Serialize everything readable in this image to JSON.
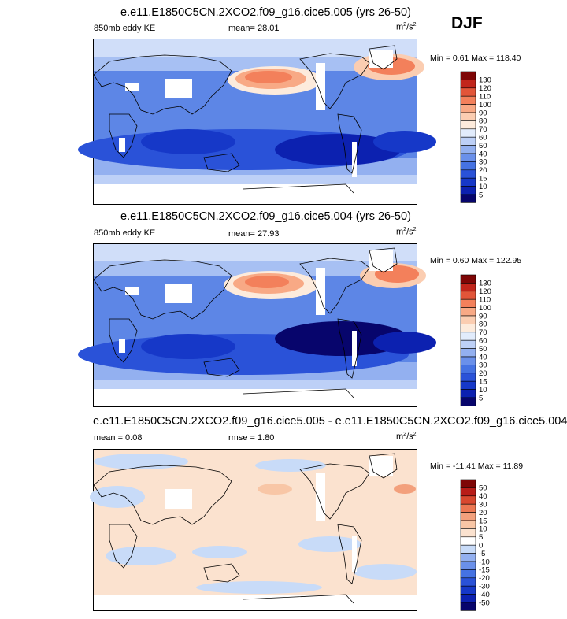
{
  "season": "DJF",
  "panels": [
    {
      "title": "e.e11.E1850C5CN.2XCO2.f09_g16.cice5.005 (yrs 26-50)",
      "left_label": "850mb eddy KE",
      "mean_text": "mean=  28.01",
      "units": "m",
      "units_sup": "2",
      "units_tail": "/s",
      "units_sup2": "2",
      "minmax": "Min =   0.61 Max = 118.40",
      "legend_levels": [
        "130",
        "120",
        "110",
        "100",
        "90",
        "80",
        "70",
        "60",
        "50",
        "40",
        "30",
        "20",
        "15",
        "10",
        "5"
      ]
    },
    {
      "title": "e.e11.E1850C5CN.2XCO2.f09_g16.cice5.004 (yrs 26-50)",
      "left_label": "850mb eddy KE",
      "mean_text": "mean=  27.93",
      "units": "m",
      "units_sup": "2",
      "units_tail": "/s",
      "units_sup2": "2",
      "minmax": "Min =   0.60 Max = 122.95",
      "legend_levels": [
        "130",
        "120",
        "110",
        "100",
        "90",
        "80",
        "70",
        "60",
        "50",
        "40",
        "30",
        "20",
        "15",
        "10",
        "5"
      ]
    },
    {
      "title": "e.e11.E1850C5CN.2XCO2.f09_g16.cice5.005 - e.e11.E1850C5CN.2XCO2.f09_g16.cice5.004",
      "left_label": "mean =   0.08",
      "mean_text": "rmse =   1.80",
      "units": "m",
      "units_sup": "2",
      "units_tail": "/s",
      "units_sup2": "2",
      "minmax": "Min = -11.41 Max =  11.89",
      "legend_levels": [
        "50",
        "40",
        "30",
        "20",
        "15",
        "10",
        "5",
        "0",
        "-5",
        "-10",
        "-15",
        "-20",
        "-30",
        "-40",
        "-50"
      ]
    }
  ],
  "chart_data": [
    {
      "type": "heatmap",
      "title": "e.e11.E1850C5CN.2XCO2.f09_g16.cice5.005 (yrs 26-50)",
      "variable": "850mb eddy KE",
      "units": "m2/s2",
      "mean": 28.01,
      "min": 0.61,
      "max": 118.4,
      "contour_levels": [
        5,
        10,
        15,
        20,
        30,
        40,
        50,
        60,
        70,
        80,
        90,
        100,
        110,
        120,
        130
      ],
      "colors": [
        "#07056c",
        "#0c21b0",
        "#1638c8",
        "#2a52d8",
        "#4572e2",
        "#6a90ea",
        "#93b0f0",
        "#bdd0f7",
        "#e2ecfc",
        "#fdebdc",
        "#fbcdb1",
        "#f8a985",
        "#f3805b",
        "#e25539",
        "#c1251b",
        "#7e0606"
      ]
    },
    {
      "type": "heatmap",
      "title": "e.e11.E1850C5CN.2XCO2.f09_g16.cice5.004 (yrs 26-50)",
      "variable": "850mb eddy KE",
      "units": "m2/s2",
      "mean": 27.93,
      "min": 0.6,
      "max": 122.95,
      "contour_levels": [
        5,
        10,
        15,
        20,
        30,
        40,
        50,
        60,
        70,
        80,
        90,
        100,
        110,
        120,
        130
      ],
      "colors": [
        "#07056c",
        "#0c21b0",
        "#1638c8",
        "#2a52d8",
        "#4572e2",
        "#6a90ea",
        "#93b0f0",
        "#bdd0f7",
        "#e2ecfc",
        "#fdebdc",
        "#fbcdb1",
        "#f8a985",
        "#f3805b",
        "#e25539",
        "#c1251b",
        "#7e0606"
      ]
    },
    {
      "type": "heatmap",
      "title": "e.e11.E1850C5CN.2XCO2.f09_g16.cice5.005 - e.e11.E1850C5CN.2XCO2.f09_g16.cice5.004",
      "units": "m2/s2",
      "mean": 0.08,
      "rmse": 1.8,
      "min": -11.41,
      "max": 11.89,
      "contour_levels": [
        -50,
        -40,
        -30,
        -20,
        -15,
        -10,
        -5,
        0,
        5,
        10,
        15,
        20,
        30,
        40,
        50
      ],
      "colors": [
        "#07056c",
        "#0c21b0",
        "#1638c8",
        "#2a52d8",
        "#4572e2",
        "#6a90ea",
        "#93b0f0",
        "#c8dbf8",
        "#ffffff",
        "#fbe2cf",
        "#f8c6a6",
        "#f3a07c",
        "#ec7752",
        "#d8482f",
        "#b81c18",
        "#7e0606"
      ]
    }
  ]
}
